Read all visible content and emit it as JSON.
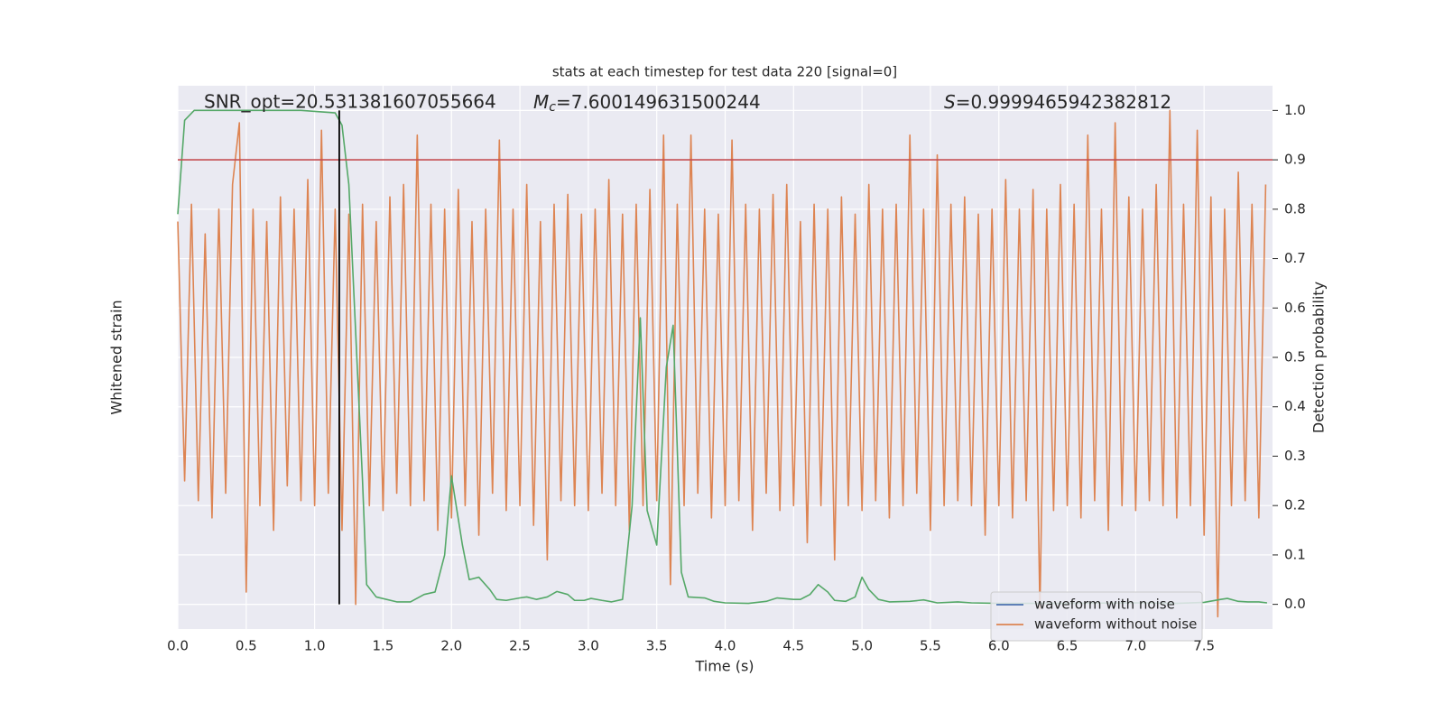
{
  "chart_data": {
    "type": "line",
    "title": "stats at each timestep for test data 220 [signal=0]",
    "x_label": "Time (s)",
    "y_label": "Whitened strain",
    "y2_label": "Detection probability",
    "annotations": [
      {
        "text": "SNR_opt=20.531381607055664"
      },
      {
        "symbol": "M",
        "subscript": "c",
        "text": "=7.600149631500244"
      },
      {
        "symbol": "S",
        "text": "=0.9999465942382812"
      }
    ],
    "xlim": [
      0,
      8
    ],
    "xticks": [
      {
        "value": 0,
        "label": "0.0"
      },
      0.5,
      {
        "value": 1,
        "label": "1.0"
      },
      1.5,
      {
        "value": 2,
        "label": "2.0"
      },
      2.5,
      {
        "value": 3,
        "label": "3.0"
      },
      3.5,
      {
        "value": 4,
        "label": "4.0"
      },
      4.5,
      {
        "value": 5,
        "label": "5.0"
      },
      5.5,
      {
        "value": 6,
        "label": "6.0"
      },
      6.5,
      {
        "value": 7,
        "label": "7.0"
      },
      7.5
    ],
    "ylim": [
      -1.1,
      1.1
    ],
    "y2lim": [
      -0.05,
      1.05
    ],
    "y2ticks": [
      {
        "value": 0,
        "label": "0.0"
      },
      0.1,
      0.2,
      0.3,
      0.4,
      0.5,
      0.6,
      0.7,
      0.8,
      0.9,
      {
        "value": 1,
        "label": "1.0"
      }
    ],
    "grid": true,
    "legend": "lower right",
    "series": [
      {
        "name": "waveform with noise",
        "color": "#4c72b0",
        "x": [],
        "values": []
      },
      {
        "name": "waveform without noise",
        "color": "#dd8452",
        "x": [
          0,
          0.05,
          0.1,
          0.15,
          0.2,
          0.25,
          0.3,
          0.35,
          0.4,
          0.45,
          0.5,
          0.55,
          0.6,
          0.65,
          0.7,
          0.75,
          0.8,
          0.85,
          0.9,
          0.95,
          1,
          1.05,
          1.1,
          1.15,
          1.2,
          1.25,
          1.3,
          1.35,
          1.4,
          1.45,
          1.5,
          1.55,
          1.6,
          1.65,
          1.7,
          1.75,
          1.8,
          1.85,
          1.9,
          1.95,
          2,
          2.05,
          2.1,
          2.15,
          2.2,
          2.25,
          2.3,
          2.35,
          2.4,
          2.45,
          2.5,
          2.55,
          2.6,
          2.65,
          2.7,
          2.75,
          2.8,
          2.85,
          2.9,
          2.95,
          3,
          3.05,
          3.1,
          3.15,
          3.2,
          3.25,
          3.3,
          3.35,
          3.4,
          3.45,
          3.5,
          3.55,
          3.6,
          3.65,
          3.7,
          3.75,
          3.8,
          3.85,
          3.9,
          3.95,
          4,
          4.05,
          4.1,
          4.15,
          4.2,
          4.25,
          4.3,
          4.35,
          4.4,
          4.45,
          4.5,
          4.55,
          4.6,
          4.65,
          4.7,
          4.75,
          4.8,
          4.85,
          4.9,
          4.95,
          5,
          5.05,
          5.1,
          5.15,
          5.2,
          5.25,
          5.3,
          5.35,
          5.4,
          5.45,
          5.5,
          5.55,
          5.6,
          5.65,
          5.7,
          5.75,
          5.8,
          5.85,
          5.9,
          5.95,
          6,
          6.05,
          6.1,
          6.15,
          6.2,
          6.25,
          6.3,
          6.35,
          6.4,
          6.45,
          6.5,
          6.55,
          6.6,
          6.65,
          6.7,
          6.75,
          6.8,
          6.85,
          6.9,
          6.95,
          7,
          7.05,
          7.1,
          7.15,
          7.2,
          7.25,
          7.3,
          7.35,
          7.4,
          7.45,
          7.5,
          7.55,
          7.6,
          7.65,
          7.7,
          7.75,
          7.8,
          7.85,
          7.9,
          7.95
        ],
        "values": [
          0.55,
          -0.5,
          0.62,
          -0.58,
          0.5,
          -0.65,
          0.6,
          -0.55,
          0.7,
          0.95,
          -0.95,
          0.6,
          -0.6,
          0.55,
          -0.7,
          0.65,
          -0.52,
          0.6,
          -0.58,
          0.72,
          -0.6,
          0.92,
          -0.55,
          0.6,
          -0.7,
          0.58,
          -1.0,
          0.62,
          -0.6,
          0.55,
          -0.62,
          0.65,
          -0.55,
          0.7,
          -0.6,
          0.9,
          -0.58,
          0.62,
          -0.7,
          0.6,
          -0.65,
          0.68,
          -0.6,
          0.55,
          -0.72,
          0.6,
          -0.55,
          0.88,
          -0.62,
          0.6,
          -0.6,
          0.7,
          -0.68,
          0.55,
          -0.82,
          0.62,
          -0.58,
          0.66,
          -0.6,
          0.58,
          -0.62,
          0.6,
          -0.55,
          0.72,
          -0.6,
          0.58,
          -0.7,
          0.62,
          -0.6,
          0.68,
          -0.58,
          0.9,
          -0.92,
          0.62,
          -0.6,
          0.9,
          -0.55,
          0.6,
          -0.65,
          0.58,
          -0.6,
          0.88,
          -0.58,
          0.62,
          -0.7,
          0.6,
          -0.55,
          0.66,
          -0.62,
          0.7,
          -0.6,
          0.55,
          -0.75,
          0.62,
          -0.6,
          0.6,
          -0.82,
          0.65,
          -0.6,
          0.58,
          -0.62,
          0.7,
          -0.58,
          0.6,
          -0.65,
          0.62,
          -0.6,
          0.9,
          -0.55,
          0.6,
          -0.7,
          0.82,
          -0.6,
          0.62,
          -0.58,
          0.65,
          -0.6,
          0.58,
          -0.72,
          0.6,
          -0.6,
          0.72,
          -0.65,
          0.6,
          -0.58,
          0.68,
          -1.02,
          0.6,
          -0.62,
          0.7,
          -0.6,
          0.62,
          -0.65,
          0.9,
          -0.58,
          0.6,
          -0.7,
          0.95,
          -0.6,
          0.65,
          -0.62,
          0.6,
          -0.58,
          0.7,
          -0.6,
          1.0,
          -0.65,
          0.62,
          -0.6,
          0.92,
          -0.72,
          0.65,
          -1.05,
          0.6,
          -0.6,
          0.75,
          -0.58,
          0.62,
          -0.65,
          0.7
        ]
      },
      {
        "color": "#55a868",
        "axis": "y2",
        "x": [
          0,
          0.05,
          0.12,
          0.5,
          0.9,
          1.15,
          1.2,
          1.25,
          1.3,
          1.35,
          1.38,
          1.45,
          1.6,
          1.7,
          1.8,
          1.88,
          1.95,
          2.0,
          2.08,
          2.13,
          2.2,
          2.28,
          2.33,
          2.4,
          2.5,
          2.55,
          2.62,
          2.7,
          2.77,
          2.85,
          2.9,
          2.97,
          3.02,
          3.1,
          3.17,
          3.25,
          3.32,
          3.38,
          3.43,
          3.5,
          3.57,
          3.62,
          3.68,
          3.73,
          3.85,
          3.92,
          4.0,
          4.17,
          4.3,
          4.38,
          4.5,
          4.55,
          4.62,
          4.68,
          4.75,
          4.8,
          4.88,
          4.95,
          5.0,
          5.05,
          5.12,
          5.2,
          5.35,
          5.45,
          5.55,
          5.7,
          5.8,
          6.0,
          6.5,
          7.0,
          7.3,
          7.5,
          7.62,
          7.67,
          7.75,
          7.82,
          7.9,
          7.96
        ],
        "values": [
          0.79,
          0.98,
          1.0,
          1.0,
          1.0,
          0.995,
          0.97,
          0.85,
          0.55,
          0.25,
          0.04,
          0.015,
          0.005,
          0.005,
          0.02,
          0.025,
          0.1,
          0.26,
          0.12,
          0.05,
          0.055,
          0.03,
          0.01,
          0.008,
          0.013,
          0.015,
          0.01,
          0.015,
          0.026,
          0.02,
          0.008,
          0.008,
          0.012,
          0.008,
          0.005,
          0.01,
          0.2,
          0.58,
          0.19,
          0.12,
          0.48,
          0.565,
          0.065,
          0.015,
          0.013,
          0.006,
          0.003,
          0.002,
          0.006,
          0.013,
          0.01,
          0.01,
          0.02,
          0.04,
          0.025,
          0.008,
          0.006,
          0.015,
          0.055,
          0.03,
          0.01,
          0.005,
          0.006,
          0.009,
          0.003,
          0.005,
          0.003,
          0.002,
          0.002,
          0.003,
          0.002,
          0.004,
          0.01,
          0.012,
          0.006,
          0.005,
          0.005,
          0.003
        ]
      }
    ],
    "hlines": [
      {
        "y": 0.9,
        "axis": "y2",
        "color": "#c44e52"
      }
    ],
    "vlines": [
      {
        "x": 1.18,
        "ymin": 0,
        "ymax": 1,
        "axis": "y2",
        "color": "#000000"
      }
    ]
  }
}
